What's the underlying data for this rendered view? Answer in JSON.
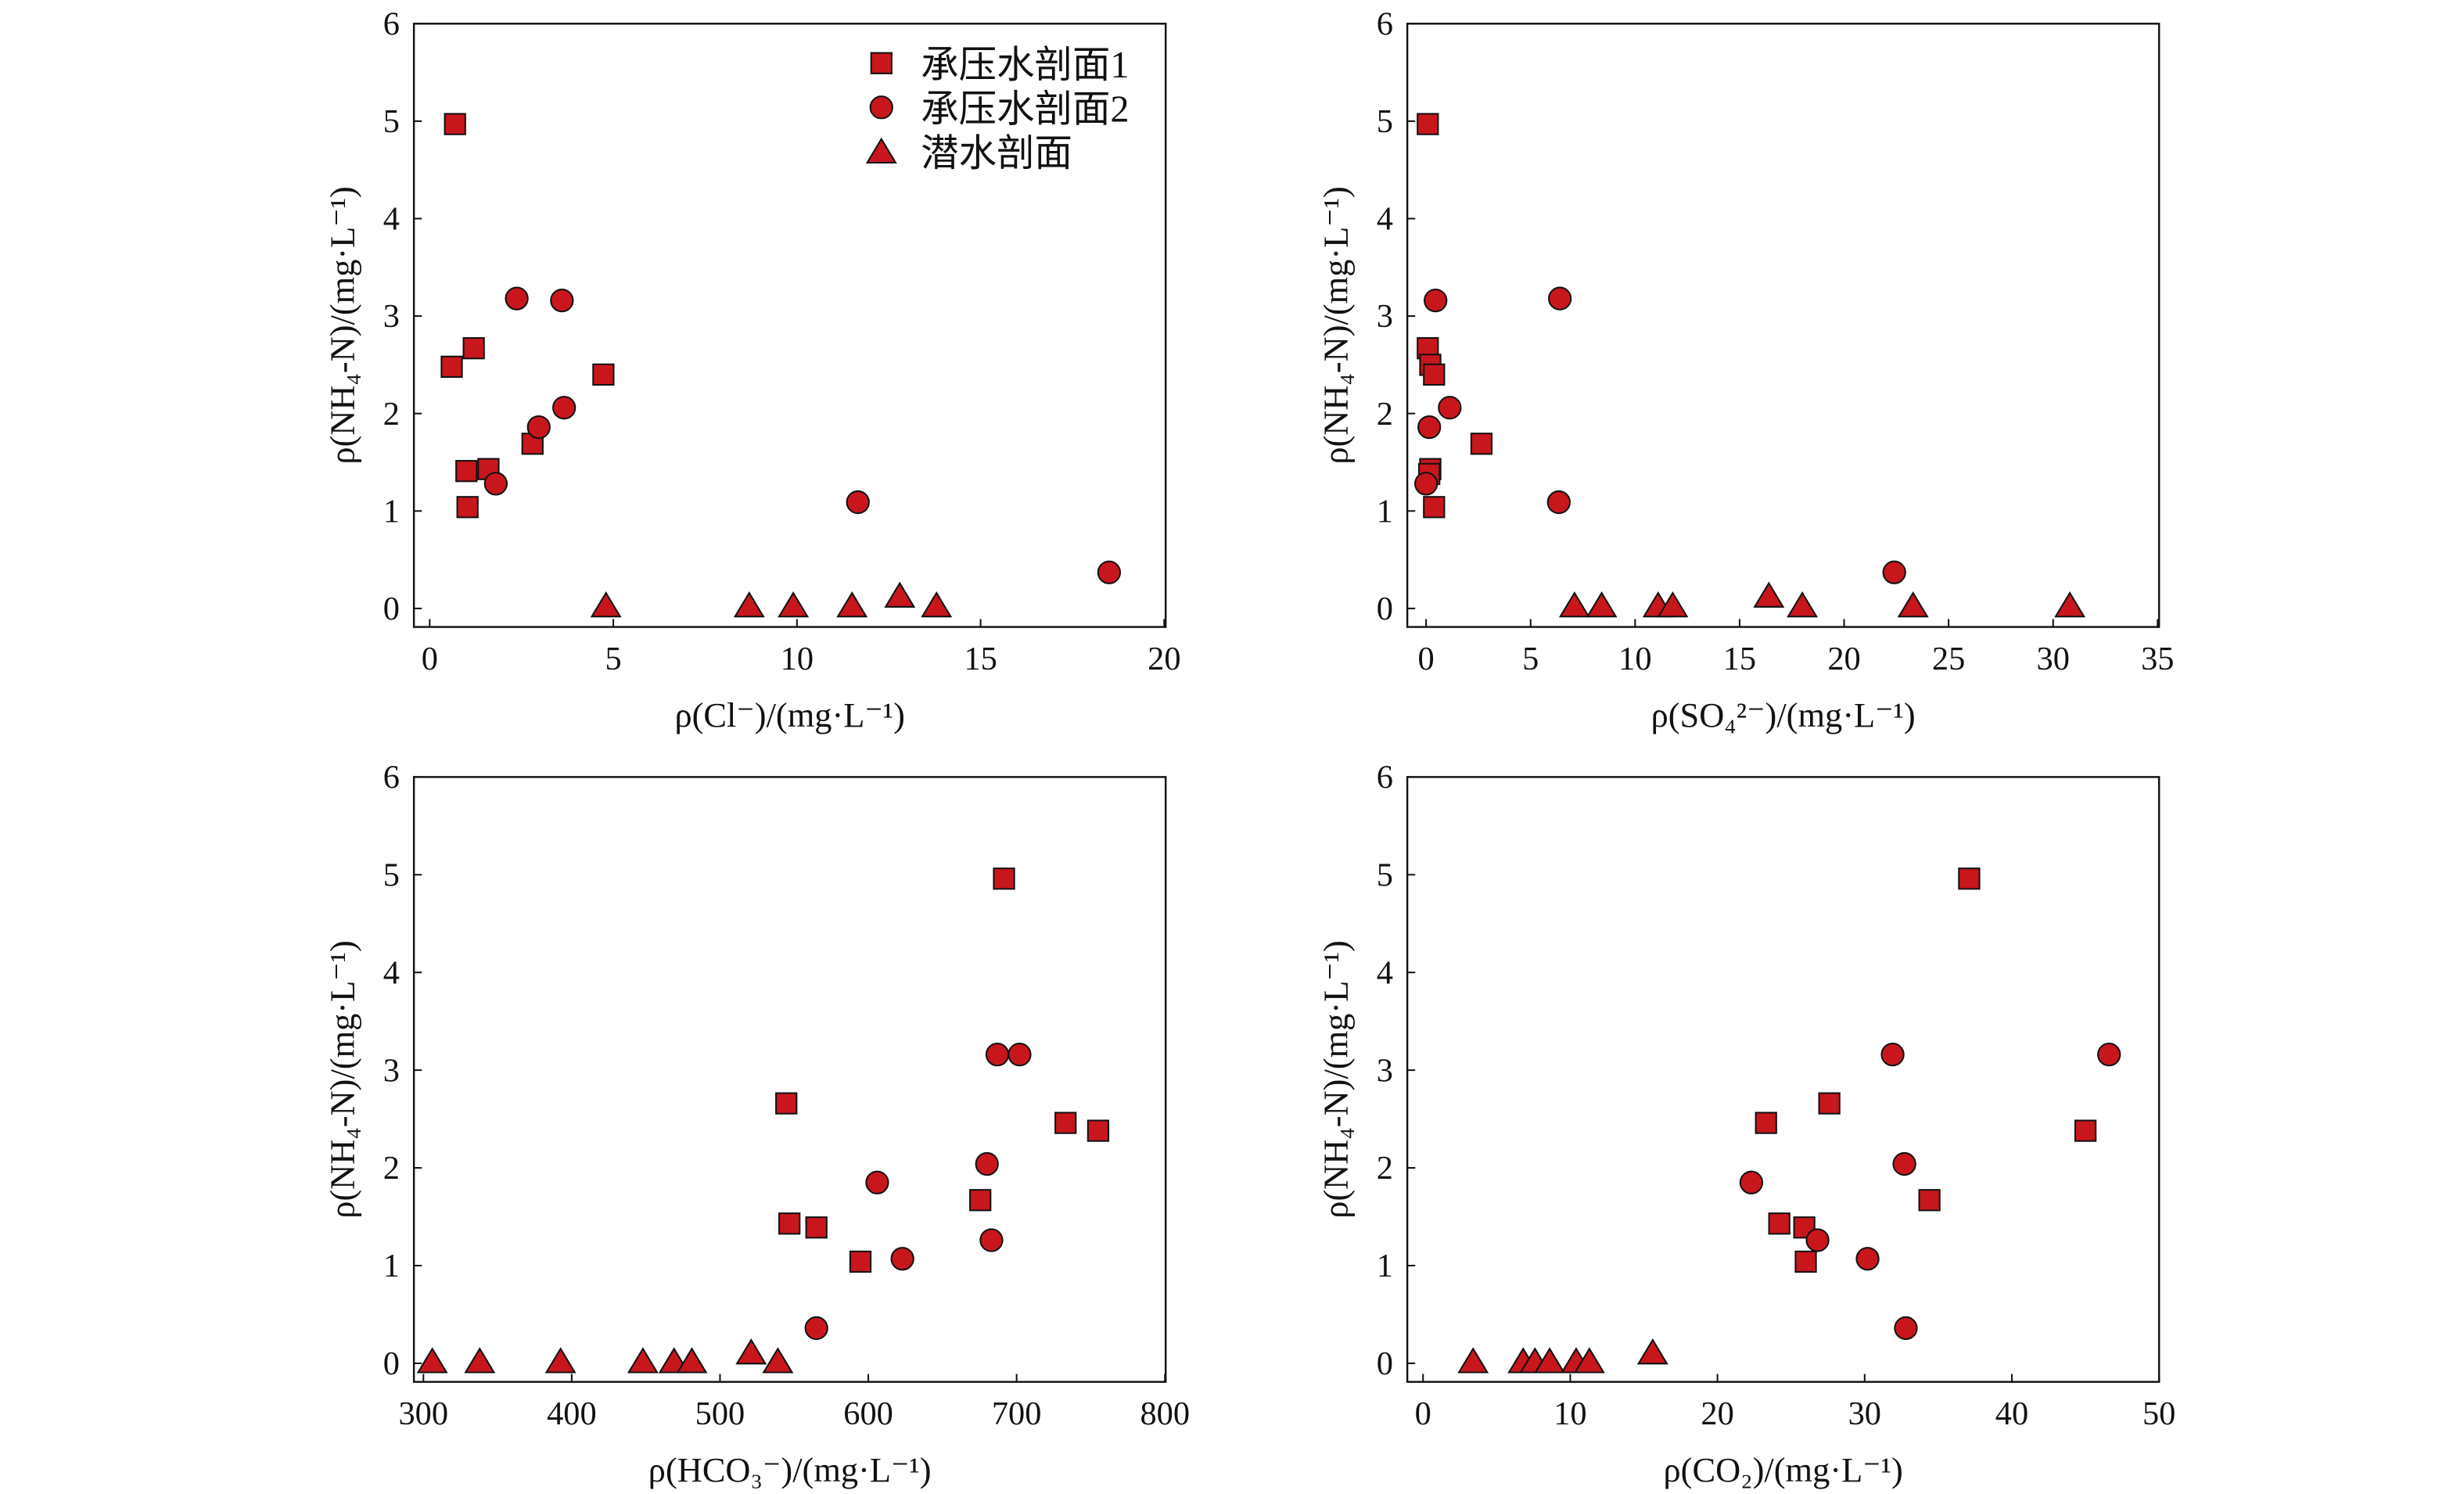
{
  "marker_color": "#c8161d",
  "legend": {
    "placement": "top-right of first panel",
    "entries": [
      {
        "name": "承压水剖面1",
        "marker": "square"
      },
      {
        "name": "承压水剖面2",
        "marker": "circle"
      },
      {
        "name": "潜水剖面",
        "marker": "triangle"
      }
    ]
  },
  "chart_data": [
    {
      "type": "scatter",
      "xlabel": "ρ(Cl⁻)/(mg·L⁻¹)",
      "ylabel": "ρ(NH₄-N)/(mg·L⁻¹)",
      "xlim": [
        -0.43,
        20.04
      ],
      "ylim": [
        -0.19,
        6.0
      ],
      "xticks": [
        0,
        5,
        10,
        15,
        20
      ],
      "yticks": [
        0,
        1,
        2,
        3,
        4,
        5,
        6
      ],
      "grid": false,
      "series": [
        {
          "name": "承压水剖面1",
          "marker": "square",
          "points": [
            [
              0.69,
              4.97
            ],
            [
              0.6,
              2.48
            ],
            [
              1.2,
              2.67
            ],
            [
              1.0,
              1.41
            ],
            [
              1.03,
              1.04
            ],
            [
              1.6,
              1.43
            ],
            [
              2.8,
              1.69
            ],
            [
              4.73,
              2.4
            ]
          ]
        },
        {
          "name": "承压水剖面2",
          "marker": "circle",
          "points": [
            [
              2.37,
              3.18
            ],
            [
              3.6,
              3.16
            ],
            [
              3.66,
              2.06
            ],
            [
              2.97,
              1.86
            ],
            [
              1.8,
              1.28
            ],
            [
              11.66,
              1.09
            ],
            [
              18.5,
              0.37
            ]
          ]
        },
        {
          "name": "潜水剖面",
          "marker": "triangle",
          "points": [
            [
              4.8,
              0.03
            ],
            [
              8.7,
              0.03
            ],
            [
              9.9,
              0.03
            ],
            [
              11.5,
              0.03
            ],
            [
              12.8,
              0.13
            ],
            [
              13.8,
              0.03
            ]
          ]
        }
      ]
    },
    {
      "type": "scatter",
      "xlabel": "ρ(SO₄²⁻)/(mg·L⁻¹)",
      "ylabel": "ρ(NH₄-N)/(mg·L⁻¹)",
      "xlim": [
        -0.9,
        35.07
      ],
      "ylim": [
        -0.19,
        6.0
      ],
      "xticks": [
        0,
        5,
        10,
        15,
        20,
        25,
        30,
        35
      ],
      "yticks": [
        0,
        1,
        2,
        3,
        4,
        5,
        6
      ],
      "grid": false,
      "series": [
        {
          "name": "承压水剖面1",
          "marker": "square",
          "points": [
            [
              0.08,
              4.97
            ],
            [
              0.08,
              2.67
            ],
            [
              0.2,
              2.5
            ],
            [
              0.38,
              2.4
            ],
            [
              0.2,
              1.43
            ],
            [
              0.15,
              1.38
            ],
            [
              0.38,
              1.04
            ],
            [
              2.65,
              1.69
            ]
          ]
        },
        {
          "name": "承压水剖面2",
          "marker": "circle",
          "points": [
            [
              0.45,
              3.16
            ],
            [
              6.4,
              3.18
            ],
            [
              1.13,
              2.06
            ],
            [
              0.15,
              1.86
            ],
            [
              0.0,
              1.28
            ],
            [
              6.35,
              1.09
            ],
            [
              22.4,
              0.37
            ]
          ]
        },
        {
          "name": "潜水剖面",
          "marker": "triangle",
          "points": [
            [
              7.1,
              0.03
            ],
            [
              8.4,
              0.03
            ],
            [
              11.1,
              0.03
            ],
            [
              11.8,
              0.03
            ],
            [
              16.4,
              0.13
            ],
            [
              18.0,
              0.03
            ],
            [
              23.3,
              0.03
            ],
            [
              30.8,
              0.03
            ]
          ]
        }
      ]
    },
    {
      "type": "scatter",
      "xlabel": "ρ(HCO₃⁻)/(mg·L⁻¹)",
      "ylabel": "ρ(NH₄-N)/(mg·L⁻¹)",
      "xlim": [
        293.6,
        800.5
      ],
      "ylim": [
        -0.19,
        6.0
      ],
      "xticks": [
        300,
        400,
        500,
        600,
        700,
        800
      ],
      "yticks": [
        0,
        1,
        2,
        3,
        4,
        5,
        6
      ],
      "grid": false,
      "series": [
        {
          "name": "承压水剖面1",
          "marker": "square",
          "points": [
            [
              691.5,
              4.96
            ],
            [
              544.7,
              2.66
            ],
            [
              733,
              2.46
            ],
            [
              755,
              2.38
            ],
            [
              546.8,
              1.43
            ],
            [
              565,
              1.39
            ],
            [
              594.7,
              1.04
            ],
            [
              675.5,
              1.67
            ]
          ]
        },
        {
          "name": "承压水剖面2",
          "marker": "circle",
          "points": [
            [
              702,
              3.16
            ],
            [
              687,
              3.16
            ],
            [
              680,
              2.04
            ],
            [
              606,
              1.85
            ],
            [
              683,
              1.26
            ],
            [
              623,
              1.07
            ],
            [
              565,
              0.36
            ]
          ]
        },
        {
          "name": "潜水剖面",
          "marker": "triangle",
          "points": [
            [
              306,
              0.02
            ],
            [
              338,
              0.02
            ],
            [
              392.5,
              0.02
            ],
            [
              448,
              0.02
            ],
            [
              469,
              0.02
            ],
            [
              481,
              0.02
            ],
            [
              521,
              0.11
            ],
            [
              539,
              0.02
            ]
          ]
        }
      ]
    },
    {
      "type": "scatter",
      "xlabel": "ρ(CO₂)/(mg·L⁻¹)",
      "ylabel": "ρ(NH₄-N)/(mg·L⁻¹)",
      "xlim": [
        -1.07,
        50.0
      ],
      "ylim": [
        -0.19,
        6.0
      ],
      "xticks": [
        0,
        10,
        20,
        30,
        40,
        50
      ],
      "yticks": [
        0,
        1,
        2,
        3,
        4,
        5,
        6
      ],
      "grid": false,
      "series": [
        {
          "name": "承压水剖面1",
          "marker": "square",
          "points": [
            [
              37.1,
              4.96
            ],
            [
              23.3,
              2.46
            ],
            [
              27.6,
              2.66
            ],
            [
              45.0,
              2.38
            ],
            [
              24.2,
              1.43
            ],
            [
              25.9,
              1.39
            ],
            [
              26.0,
              1.04
            ],
            [
              34.4,
              1.67
            ]
          ]
        },
        {
          "name": "承压水剖面2",
          "marker": "circle",
          "points": [
            [
              46.6,
              3.16
            ],
            [
              31.9,
              3.16
            ],
            [
              32.7,
              2.04
            ],
            [
              22.3,
              1.85
            ],
            [
              26.8,
              1.26
            ],
            [
              30.2,
              1.07
            ],
            [
              32.8,
              0.36
            ]
          ]
        },
        {
          "name": "潜水剖面",
          "marker": "triangle",
          "points": [
            [
              3.4,
              0.02
            ],
            [
              6.8,
              0.02
            ],
            [
              7.6,
              0.02
            ],
            [
              8.6,
              0.02
            ],
            [
              10.4,
              0.02
            ],
            [
              11.3,
              0.02
            ],
            [
              15.6,
              0.11
            ]
          ]
        }
      ]
    }
  ]
}
